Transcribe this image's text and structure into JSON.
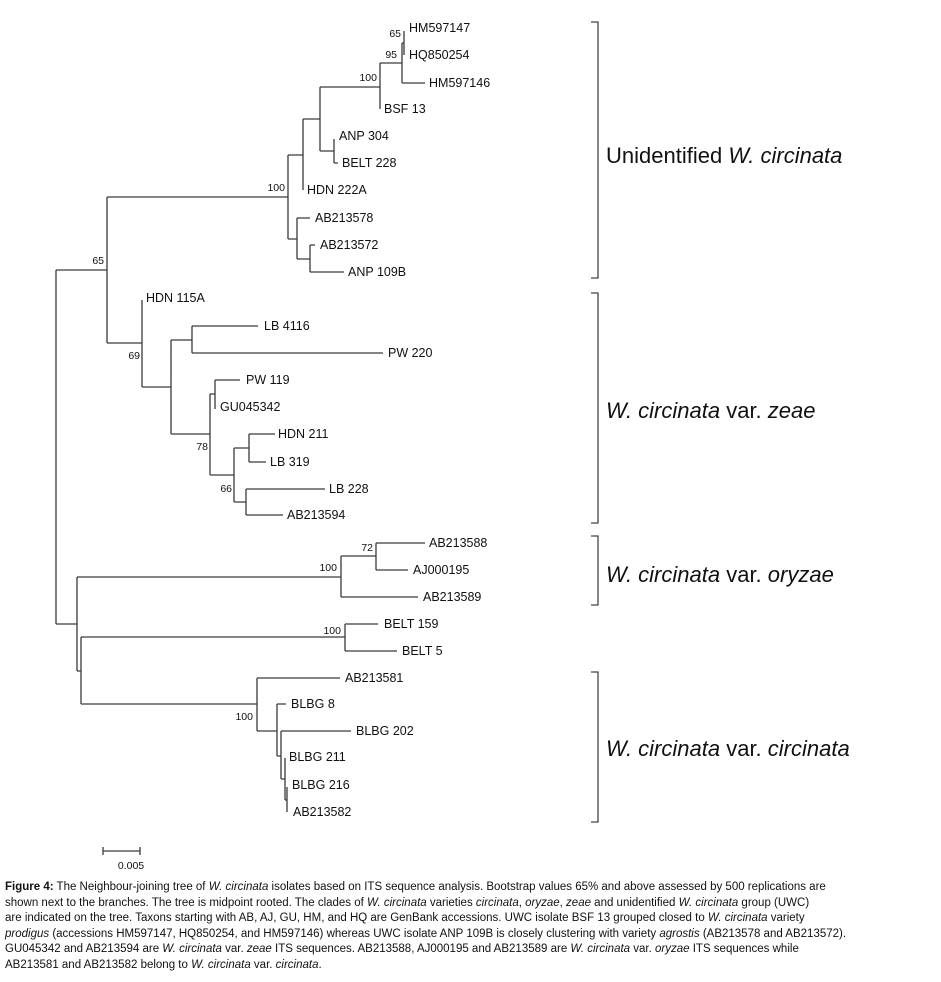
{
  "taxa": [
    "HM597147",
    "HQ850254",
    "HM597146",
    "BSF 13",
    "ANP 304",
    "BELT 228",
    "HDN 222A",
    "AB213578",
    "AB213572",
    "ANP 109B",
    "HDN 115A",
    "LB 4116",
    "PW 220",
    "PW 119",
    "GU045342",
    "HDN 211",
    "LB 319",
    "LB 228",
    "AB213594",
    "AB213588",
    "AJ000195",
    "AB213589",
    "BELT 159",
    "BELT 5",
    "AB213581",
    "BLBG 8",
    "BLBG 202",
    "BLBG 211",
    "BLBG 216",
    "AB213582"
  ],
  "bootstrap": [
    "65",
    "95",
    "100",
    "100",
    "65",
    "69",
    "78",
    "66",
    "72",
    "100",
    "100",
    "100"
  ],
  "clades": [
    {
      "prefix": "Unidentified ",
      "italic": "W. circinata",
      "suffix": ""
    },
    {
      "prefix": "",
      "italic": "W. circinata",
      "suffix": " var. ",
      "italic2": "zeae"
    },
    {
      "prefix": "",
      "italic": "W. circinata",
      "suffix": " var. ",
      "italic2": "oryzae"
    },
    {
      "prefix": "",
      "italic": "W. circinata",
      "suffix": " var. ",
      "italic2": "circinata"
    }
  ],
  "scale_bar": "0.005",
  "caption": [
    [
      {
        "t": "Figure 4:",
        "s": "b"
      },
      {
        "t": " The Neighbour-joining tree of "
      },
      {
        "t": "W. circinata",
        "s": "i"
      },
      {
        "t": " isolates based on ITS sequence analysis. Bootstrap values 65% and above assessed by 500 replications are"
      }
    ],
    [
      {
        "t": "shown next to the branches. The tree is midpoint rooted. The clades of "
      },
      {
        "t": "W. circinata",
        "s": "i"
      },
      {
        "t": " varieties "
      },
      {
        "t": "circinata",
        "s": "i"
      },
      {
        "t": ", "
      },
      {
        "t": "oryzae",
        "s": "i"
      },
      {
        "t": ", "
      },
      {
        "t": "zeae",
        "s": "i"
      },
      {
        "t": " and unidentified "
      },
      {
        "t": "W. circinata",
        "s": "i"
      },
      {
        "t": " group (UWC)"
      }
    ],
    [
      {
        "t": "are indicated on the tree. Taxons starting with AB, AJ, GU, HM, and HQ are GenBank accessions. UWC isolate BSF 13 grouped closed to "
      },
      {
        "t": "W. circinata",
        "s": "i"
      },
      {
        "t": " variety"
      }
    ],
    [
      {
        "t": "prodigus",
        "s": "i"
      },
      {
        "t": " (accessions HM597147, HQ850254, and HM597146) whereas UWC isolate ANP 109B is closely clustering with variety "
      },
      {
        "t": "agrostis",
        "s": "i"
      },
      {
        "t": " (AB213578 and AB213572)."
      }
    ],
    [
      {
        "t": "GU045342 and AB213594 are "
      },
      {
        "t": "W. circinata",
        "s": "i"
      },
      {
        "t": " var. "
      },
      {
        "t": "zeae",
        "s": "i"
      },
      {
        "t": " ITS sequences. AB213588, AJ000195 and AB213589 are "
      },
      {
        "t": "W. circinata",
        "s": "i"
      },
      {
        "t": " var. "
      },
      {
        "t": "oryzae",
        "s": "i"
      },
      {
        "t": " ITS sequences while"
      }
    ],
    [
      {
        "t": "AB213581 and AB213582 belong to "
      },
      {
        "t": "W. circinata",
        "s": "i"
      },
      {
        "t": " var. "
      },
      {
        "t": "circinata",
        "s": "i"
      },
      {
        "t": "."
      }
    ]
  ]
}
